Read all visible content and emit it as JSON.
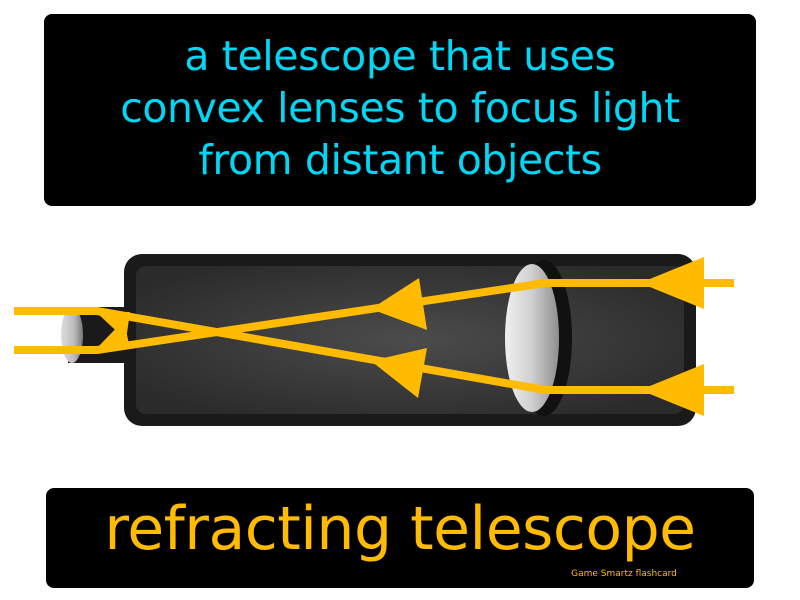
{
  "definition": {
    "line1": "a telescope that uses",
    "line2": "convex lenses to focus light",
    "line3": "from distant objects"
  },
  "term": "refracting telescope",
  "credit": "Game Smartz flashcard",
  "colors": {
    "card_background": "#000000",
    "definition_text": "#00d7f5",
    "term_text": "#ffbb00",
    "light_rays": "#ffbb00",
    "tube_body": "#3a3a3a",
    "tube_outline": "#111111",
    "lens": "#d8d8d8"
  },
  "illustration": {
    "subject": "refracting-telescope",
    "parts": [
      "tube",
      "eyepiece",
      "objective-lens",
      "light-rays"
    ],
    "ray_arrows": 6
  }
}
